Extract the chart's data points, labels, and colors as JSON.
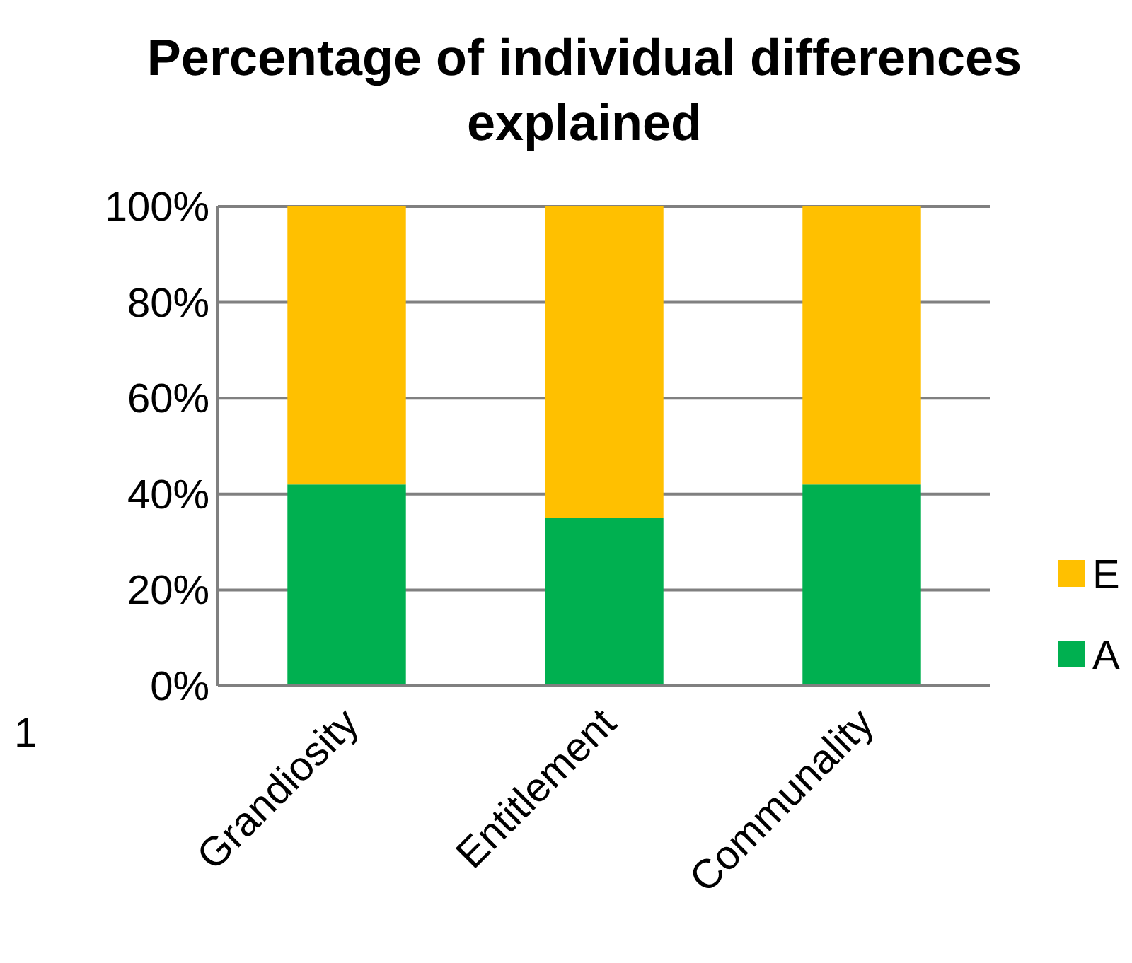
{
  "chart_data": {
    "type": "bar",
    "title": "Percentage of individual differences explained",
    "categories": [
      "Grandiosity",
      "Entitlement",
      "Communality"
    ],
    "series": [
      {
        "name": "A",
        "color": "#00b050",
        "values": [
          42,
          35,
          42
        ]
      },
      {
        "name": "E",
        "color": "#ffc000",
        "values": [
          58,
          65,
          58
        ]
      }
    ],
    "stacked": true,
    "ylim": [
      0,
      100
    ],
    "yticks": [
      {
        "value": 0,
        "label": "0%"
      },
      {
        "value": 20,
        "label": "20%"
      },
      {
        "value": 40,
        "label": "40%"
      },
      {
        "value": 60,
        "label": "60%"
      },
      {
        "value": 80,
        "label": "80%"
      },
      {
        "value": 100,
        "label": "100%"
      }
    ],
    "grid": "y",
    "legend": "right",
    "annotations": [
      "1"
    ]
  }
}
